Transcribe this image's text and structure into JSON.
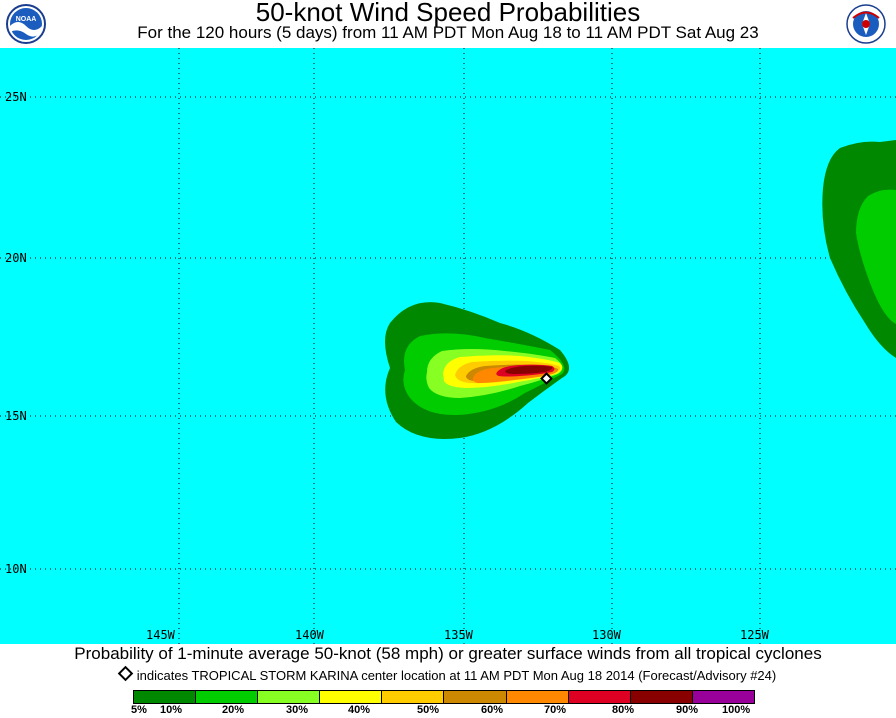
{
  "title": "50-knot Wind Speed Probabilities",
  "subtitle": "For the 120 hours (5 days) from 11 AM PDT Mon Aug 18 to 11 AM PDT Sat Aug 23",
  "logos": {
    "left": "noaa-logo",
    "left_text": "NOAA",
    "right": "nws-logo",
    "right_text": "NATIONAL WEATHER SERVICE"
  },
  "map": {
    "background": "#00ffff",
    "lat_labels": [
      "25N",
      "20N",
      "15N",
      "10N"
    ],
    "lon_labels": [
      "145W",
      "140W",
      "135W",
      "130W",
      "125W"
    ],
    "storm_marker": "tropical-storm-center-icon"
  },
  "footer": {
    "caption": "Probability of 1-minute average 50-knot (58 mph) or greater surface winds from all tropical cyclones",
    "note": "indicates TROPICAL STORM KARINA center location at 11 AM PDT Mon Aug 18 2014 (Forecast/Advisory #24)"
  },
  "legend": {
    "colors": [
      "#008800",
      "#00cc00",
      "#88ff22",
      "#ffff00",
      "#ffcc00",
      "#cc8800",
      "#ff8800",
      "#dd0022",
      "#880000",
      "#990099"
    ],
    "labels": [
      "5%",
      "10%",
      "20%",
      "30%",
      "40%",
      "50%",
      "60%",
      "70%",
      "80%",
      "90%",
      "100%"
    ]
  }
}
